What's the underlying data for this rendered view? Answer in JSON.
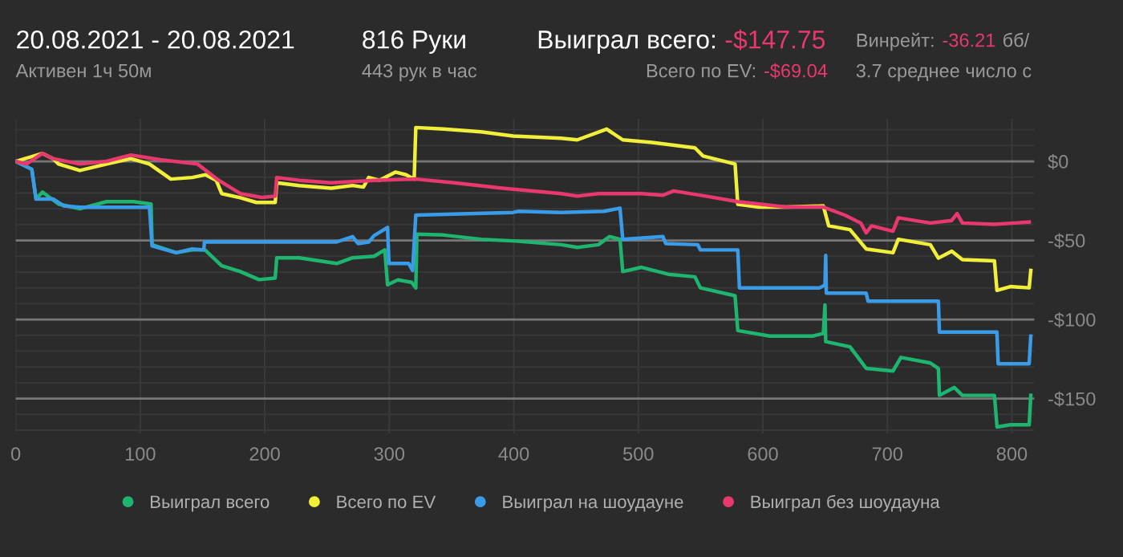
{
  "chart_data": {
    "type": "line",
    "annotations": [
      "20.08.2021 - 20.08.2021",
      "Активен 1ч 50м",
      "816 Руки",
      "443 рук в час",
      "Выиграл всего:",
      "-$147.75",
      "Всего по EV:",
      "-$69.04",
      "Винрейт:",
      "-36.21",
      "бб/",
      "3.7 среднее число с"
    ],
    "xlim": [
      0,
      818
    ],
    "ylim": [
      -172,
      27
    ],
    "xticks": [
      0,
      100,
      200,
      300,
      400,
      500,
      600,
      700,
      800
    ],
    "yticks": [
      {
        "value": 20,
        "label": null
      },
      {
        "value": 10,
        "label": null
      },
      {
        "value": 0,
        "label": "$0"
      },
      {
        "value": -10,
        "label": null
      },
      {
        "value": -20,
        "label": null
      },
      {
        "value": -30,
        "label": null
      },
      {
        "value": -40,
        "label": null
      },
      {
        "value": -50,
        "label": "-$50"
      },
      {
        "value": -60,
        "label": null
      },
      {
        "value": -70,
        "label": null
      },
      {
        "value": -80,
        "label": null
      },
      {
        "value": -90,
        "label": null
      },
      {
        "value": -100,
        "label": "-$100"
      },
      {
        "value": -110,
        "label": null
      },
      {
        "value": -120,
        "label": null
      },
      {
        "value": -130,
        "label": null
      },
      {
        "value": -140,
        "label": null
      },
      {
        "value": -150,
        "label": "-$150"
      },
      {
        "value": -160,
        "label": null
      },
      {
        "value": -170,
        "label": null
      }
    ],
    "grid": true,
    "legend": "bottom",
    "marker": "none",
    "line_style": "solid",
    "series": [
      {
        "name": "Выиграл всего",
        "color": "#1db56f",
        "x": [
          0,
          12.9,
          16.3,
          21.5,
          34.4,
          51.5,
          73,
          94.5,
          108.7,
          109.5,
          128.9,
          141.8,
          152,
          165.4,
          180.4,
          195.4,
          208.4,
          209.6,
          227.7,
          257.7,
          270.6,
          287.8,
          296.4,
          298.6,
          307,
          317.9,
          321.3,
          322.2,
          343.6,
          373.7,
          399.5,
          438.1,
          451,
          468,
          476.8,
          485.3,
          487.5,
          502.6,
          524,
          545.5,
          549.8,
          577.7,
          579.9,
          605.6,
          640,
          648.6,
          649.9,
          650.5,
          670,
          683,
          704.5,
          710.9,
          734.5,
          741,
          741.8,
          753.8,
          760.3,
          786,
          788.1,
          798.8,
          813.9,
          815.2
        ],
        "values": [
          0,
          -5,
          -23.8,
          -19.4,
          -27,
          -30,
          -25.5,
          -25.5,
          -27,
          -52.7,
          -57.8,
          -56,
          -56,
          -66,
          -69.7,
          -74.8,
          -73.8,
          -61,
          -61,
          -64.6,
          -61,
          -60,
          -56,
          -78,
          -75,
          -76.5,
          -80,
          -46,
          -46.6,
          -49.3,
          -50.3,
          -52.7,
          -54.4,
          -52.7,
          -47.6,
          -49.3,
          -69.7,
          -67,
          -71.4,
          -73,
          -80,
          -85,
          -107,
          -110.5,
          -110.5,
          -108.8,
          -90.8,
          -114,
          -117.3,
          -130.9,
          -132.6,
          -124,
          -127.5,
          -131,
          -148,
          -143,
          -148,
          -148,
          -168,
          -166.6,
          -166.6,
          -148
        ]
      },
      {
        "name": "Всего по EV",
        "color": "#f2ef3a",
        "x": [
          0,
          21.5,
          30,
          34.4,
          51.5,
          73,
          92.4,
          107.4,
          124.6,
          141.8,
          152.5,
          161,
          165.4,
          180.4,
          193.3,
          208.4,
          209.6,
          227.7,
          253.4,
          270.6,
          279.2,
          283.5,
          292,
          304.9,
          313.5,
          320,
          321.3,
          343.6,
          373.7,
          399.5,
          438,
          451,
          474.6,
          487.5,
          511,
          545.5,
          552,
          577.7,
          579.9,
          597,
          618.6,
          648.6,
          652.9,
          670,
          683,
          704.5,
          708.8,
          734.5,
          741,
          751.7,
          760.3,
          786,
          788,
          798.8,
          813.9,
          815.2
        ],
        "values": [
          0,
          5,
          1.7,
          -1.7,
          -5.8,
          -1.7,
          1.7,
          -1.7,
          -11.2,
          -10.2,
          -8.5,
          -12,
          -20.4,
          -23,
          -26,
          -26,
          -13.6,
          -15.3,
          -17,
          -15.3,
          -16.3,
          -10.2,
          -12,
          -6.8,
          -8.5,
          -11.2,
          21.4,
          20.4,
          18.7,
          16,
          14.6,
          13.6,
          20.4,
          13.6,
          11.9,
          8.5,
          3.4,
          -1.7,
          -27.2,
          -28.9,
          -28.9,
          -28.2,
          -40.8,
          -43.2,
          -55.4,
          -57.8,
          -49.3,
          -52.7,
          -61.2,
          -56.8,
          -62.2,
          -62.9,
          -81.6,
          -79.2,
          -80,
          -69
        ]
      },
      {
        "name": "Выиграл на шоудауне",
        "color": "#3a9be8",
        "x": [
          0,
          12.9,
          16.3,
          30,
          38.7,
          51.5,
          107.4,
          109.5,
          128.9,
          141.8,
          151,
          151.6,
          257.7,
          270.6,
          274.9,
          283.5,
          287.8,
          298.6,
          299.8,
          315.6,
          318.7,
          321.3,
          399.5,
          403.8,
          438,
          472.5,
          485.3,
          487.5,
          519.8,
          522,
          547.7,
          549.8,
          579.9,
          581.2,
          645.6,
          649.9,
          650.5,
          651,
          683,
          684.5,
          741,
          741.8,
          788,
          789,
          813.9,
          815.2
        ],
        "values": [
          0,
          -5,
          -23.8,
          -23.8,
          -28.2,
          -29,
          -29,
          -53.4,
          -57.8,
          -55.4,
          -56,
          -51,
          -51,
          -47.6,
          -52,
          -51,
          -47,
          -41.8,
          -64.6,
          -64.6,
          -69,
          -34,
          -32.3,
          -31.6,
          -32.3,
          -31.6,
          -29.6,
          -49.3,
          -47.6,
          -52,
          -52.7,
          -56,
          -56,
          -80,
          -80,
          -78.2,
          -59.5,
          -83.3,
          -83.3,
          -88.4,
          -88.4,
          -108,
          -108,
          -128,
          -128,
          -110.5
        ]
      },
      {
        "name": "Выиграл без шоудауна",
        "color": "#e8386e",
        "x": [
          0,
          8.6,
          21.5,
          30,
          51.5,
          73,
          92.4,
          116,
          146,
          163,
          180.4,
          197.6,
          208.4,
          209.6,
          227.7,
          253.4,
          287.8,
          321.3,
          352,
          390.8,
          438,
          451,
          468,
          502.6,
          519.8,
          528.4,
          554.1,
          579.9,
          618.6,
          648.6,
          665.8,
          678.6,
          683,
          687.3,
          704.5,
          708.8,
          734.5,
          751.7,
          756,
          760.3,
          786,
          813.9
        ],
        "values": [
          0,
          -1.7,
          5,
          1.7,
          -1.7,
          0,
          4,
          1,
          -1.7,
          -12,
          -20.4,
          -22.8,
          -22,
          -10.2,
          -12,
          -13.6,
          -12,
          -11.2,
          -13.6,
          -17,
          -20.4,
          -22,
          -20.4,
          -20.4,
          -21.4,
          -18.7,
          -22,
          -25.5,
          -28.9,
          -28.9,
          -34,
          -39,
          -45.2,
          -40.8,
          -44.2,
          -35.7,
          -39,
          -37.4,
          -33,
          -39,
          -39.8,
          -38.4
        ]
      }
    ]
  }
}
